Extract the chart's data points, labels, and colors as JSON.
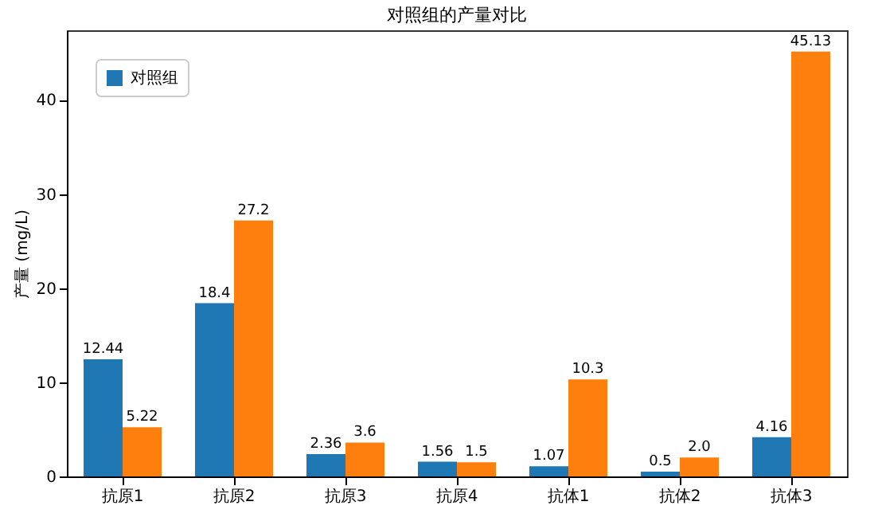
{
  "chart_data": {
    "type": "bar",
    "title": "对照组的产量对比",
    "ylabel": "产量 (mg/L)",
    "categories": [
      "抗原1",
      "抗原2",
      "抗原3",
      "抗原4",
      "抗体1",
      "抗体2",
      "抗体3"
    ],
    "series": [
      {
        "name": "对照组",
        "color": "#1f77b4",
        "values": [
          12.44,
          18.4,
          2.36,
          1.56,
          1.07,
          0.5,
          4.16
        ],
        "value_labels": [
          "12.44",
          "18.4",
          "2.36",
          "1.56",
          "1.07",
          "0.5",
          "4.16"
        ]
      },
      {
        "color": "#ff7f0e",
        "values": [
          5.22,
          27.2,
          3.6,
          1.5,
          10.3,
          2.0,
          45.13
        ],
        "value_labels": [
          "5.22",
          "27.2",
          "3.6",
          "1.5",
          "10.3",
          "2.0",
          "45.13"
        ]
      }
    ],
    "ylim": [
      0,
      47.4
    ],
    "yticks": [
      0,
      10,
      20,
      30,
      40
    ],
    "grid": false,
    "legend": "top left"
  }
}
